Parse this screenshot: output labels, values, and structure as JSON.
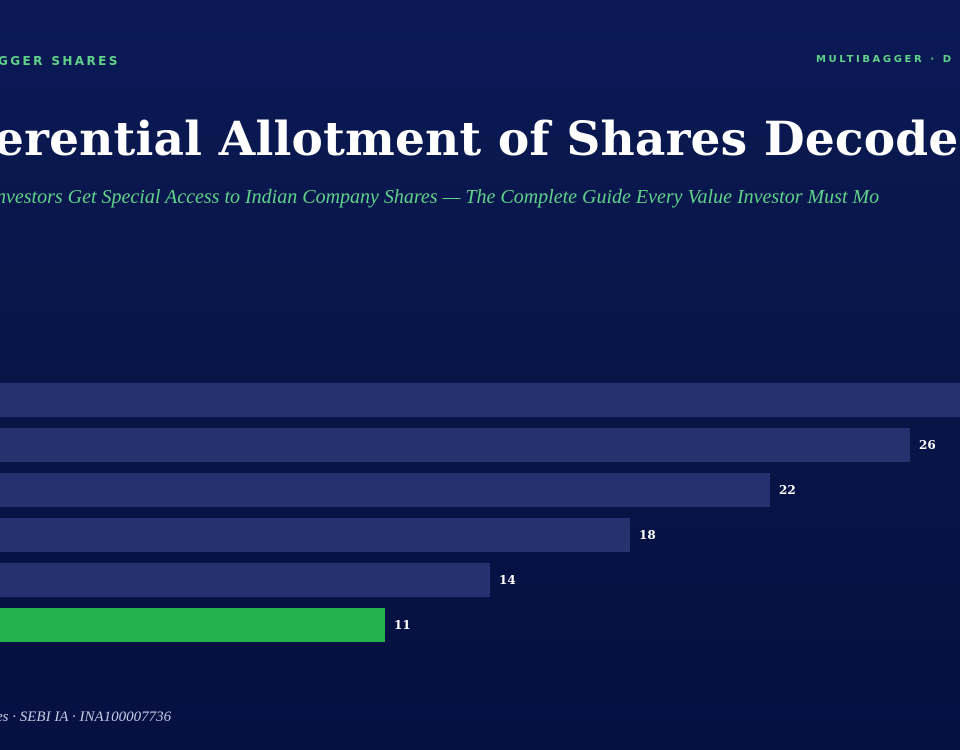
{
  "header": {
    "brand_left": "GGER SHARES",
    "brand_right": "MULTIBAGGER · D"
  },
  "title": "erential Allotment of Shares Decoded",
  "subtitle": "nvestors Get Special Access to Indian Company Shares — The Complete Guide Every Value Investor Must Mo",
  "footer": "es · SEBI IA · INA100007736",
  "chart_data": {
    "type": "bar",
    "orientation": "horizontal",
    "values": [
      30,
      26,
      22,
      18,
      14,
      11
    ],
    "value_labels": [
      "",
      "26",
      "22",
      "18",
      "14",
      "11"
    ],
    "highlight_index": 5,
    "colors": {
      "bar": "#263270",
      "highlight": "#22b14c",
      "label": "#ffffff"
    }
  }
}
